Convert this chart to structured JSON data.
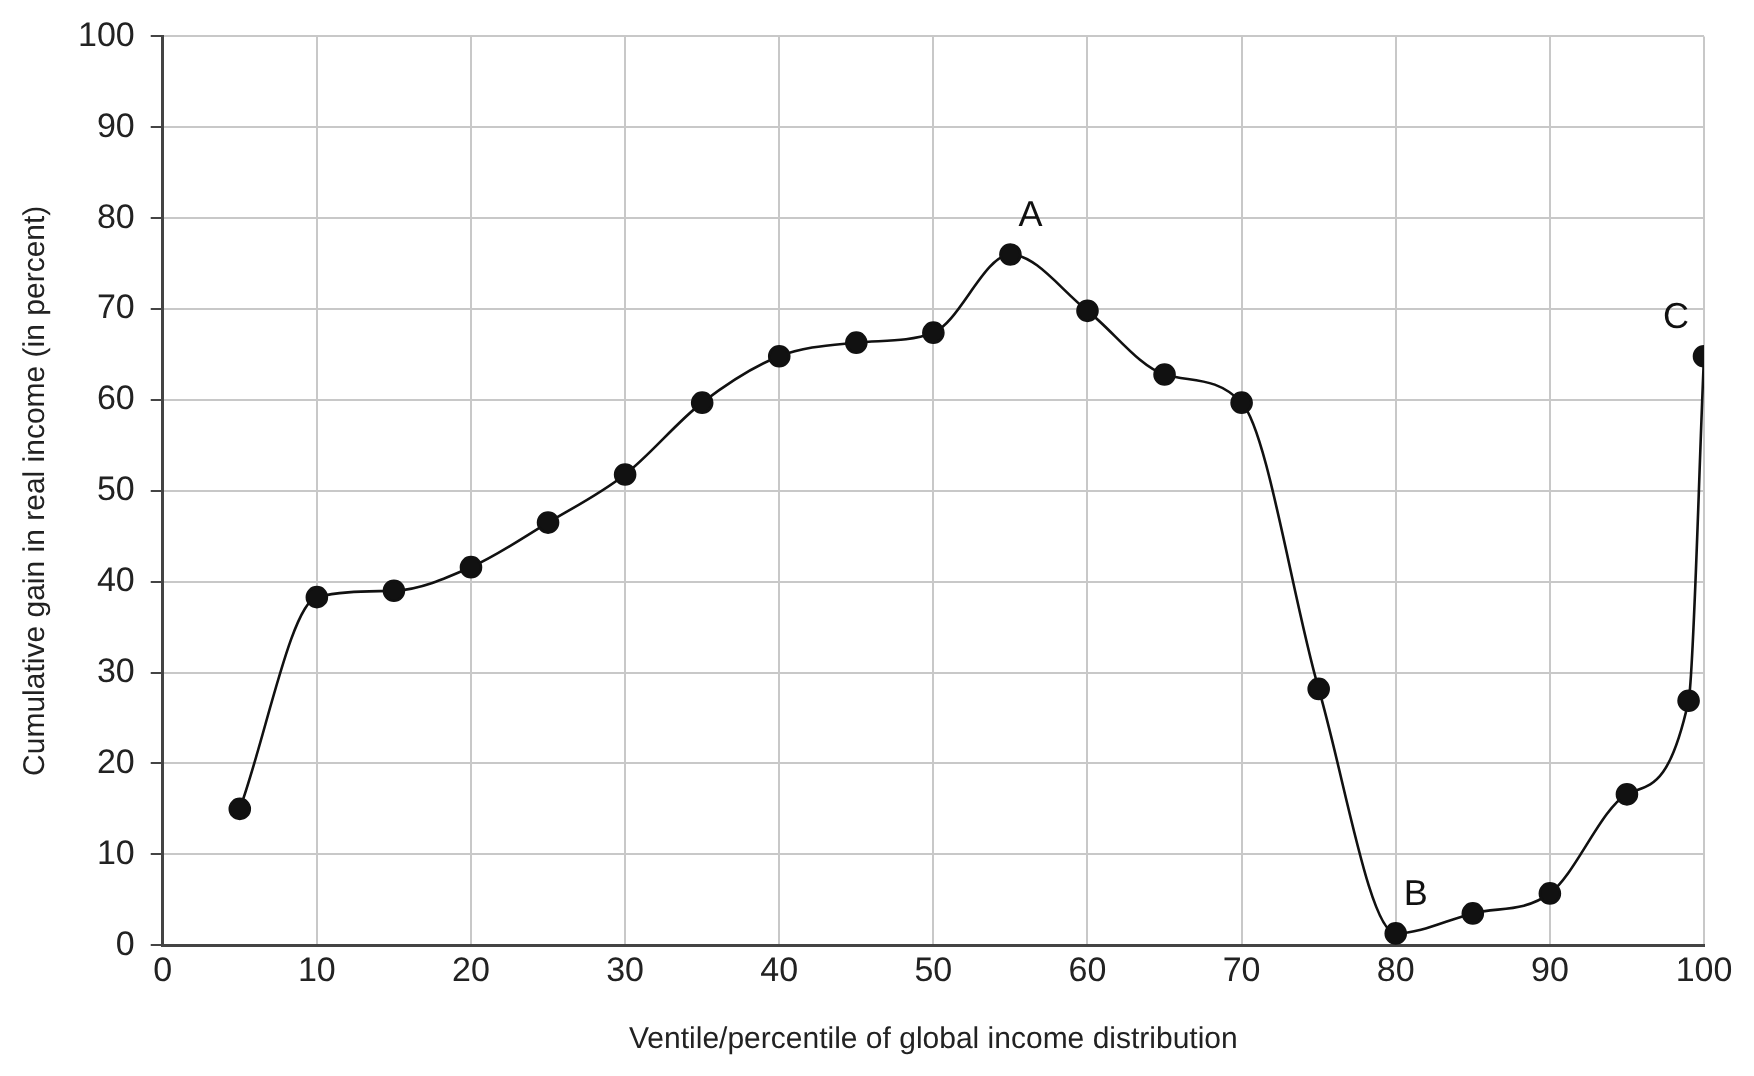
{
  "chart_data": {
    "type": "line",
    "xlabel": "Ventile/percentile of global income distribution",
    "ylabel": "Cumulative gain in real income (in percent)",
    "x": [
      5,
      10,
      15,
      20,
      25,
      30,
      35,
      40,
      45,
      50,
      55,
      60,
      65,
      70,
      75,
      80,
      85,
      90,
      95,
      99,
      100
    ],
    "series": [
      {
        "color": "#111111",
        "values": [
          15,
          38.3,
          39,
          41.6,
          46.5,
          51.8,
          59.7,
          64.8,
          66.3,
          67.4,
          76,
          69.8,
          62.8,
          59.7,
          28.2,
          1.3,
          3.5,
          5.7,
          16.6,
          26.9,
          64.8
        ]
      }
    ],
    "xlim": [
      0,
      100
    ],
    "xticks": [
      0,
      10,
      20,
      30,
      40,
      50,
      60,
      70,
      80,
      90,
      100
    ],
    "ylim": [
      0,
      100
    ],
    "yticks": [
      0,
      10,
      20,
      30,
      40,
      50,
      60,
      70,
      80,
      90,
      100
    ],
    "annotations": [
      {
        "text": "A",
        "x": 55,
        "y": 76
      },
      {
        "text": "B",
        "x": 80,
        "y": 1.3
      },
      {
        "text": "C",
        "x": 100,
        "y": 64.8
      }
    ],
    "grid": true,
    "legend": false,
    "marker": "circle",
    "line_style": "solid"
  }
}
